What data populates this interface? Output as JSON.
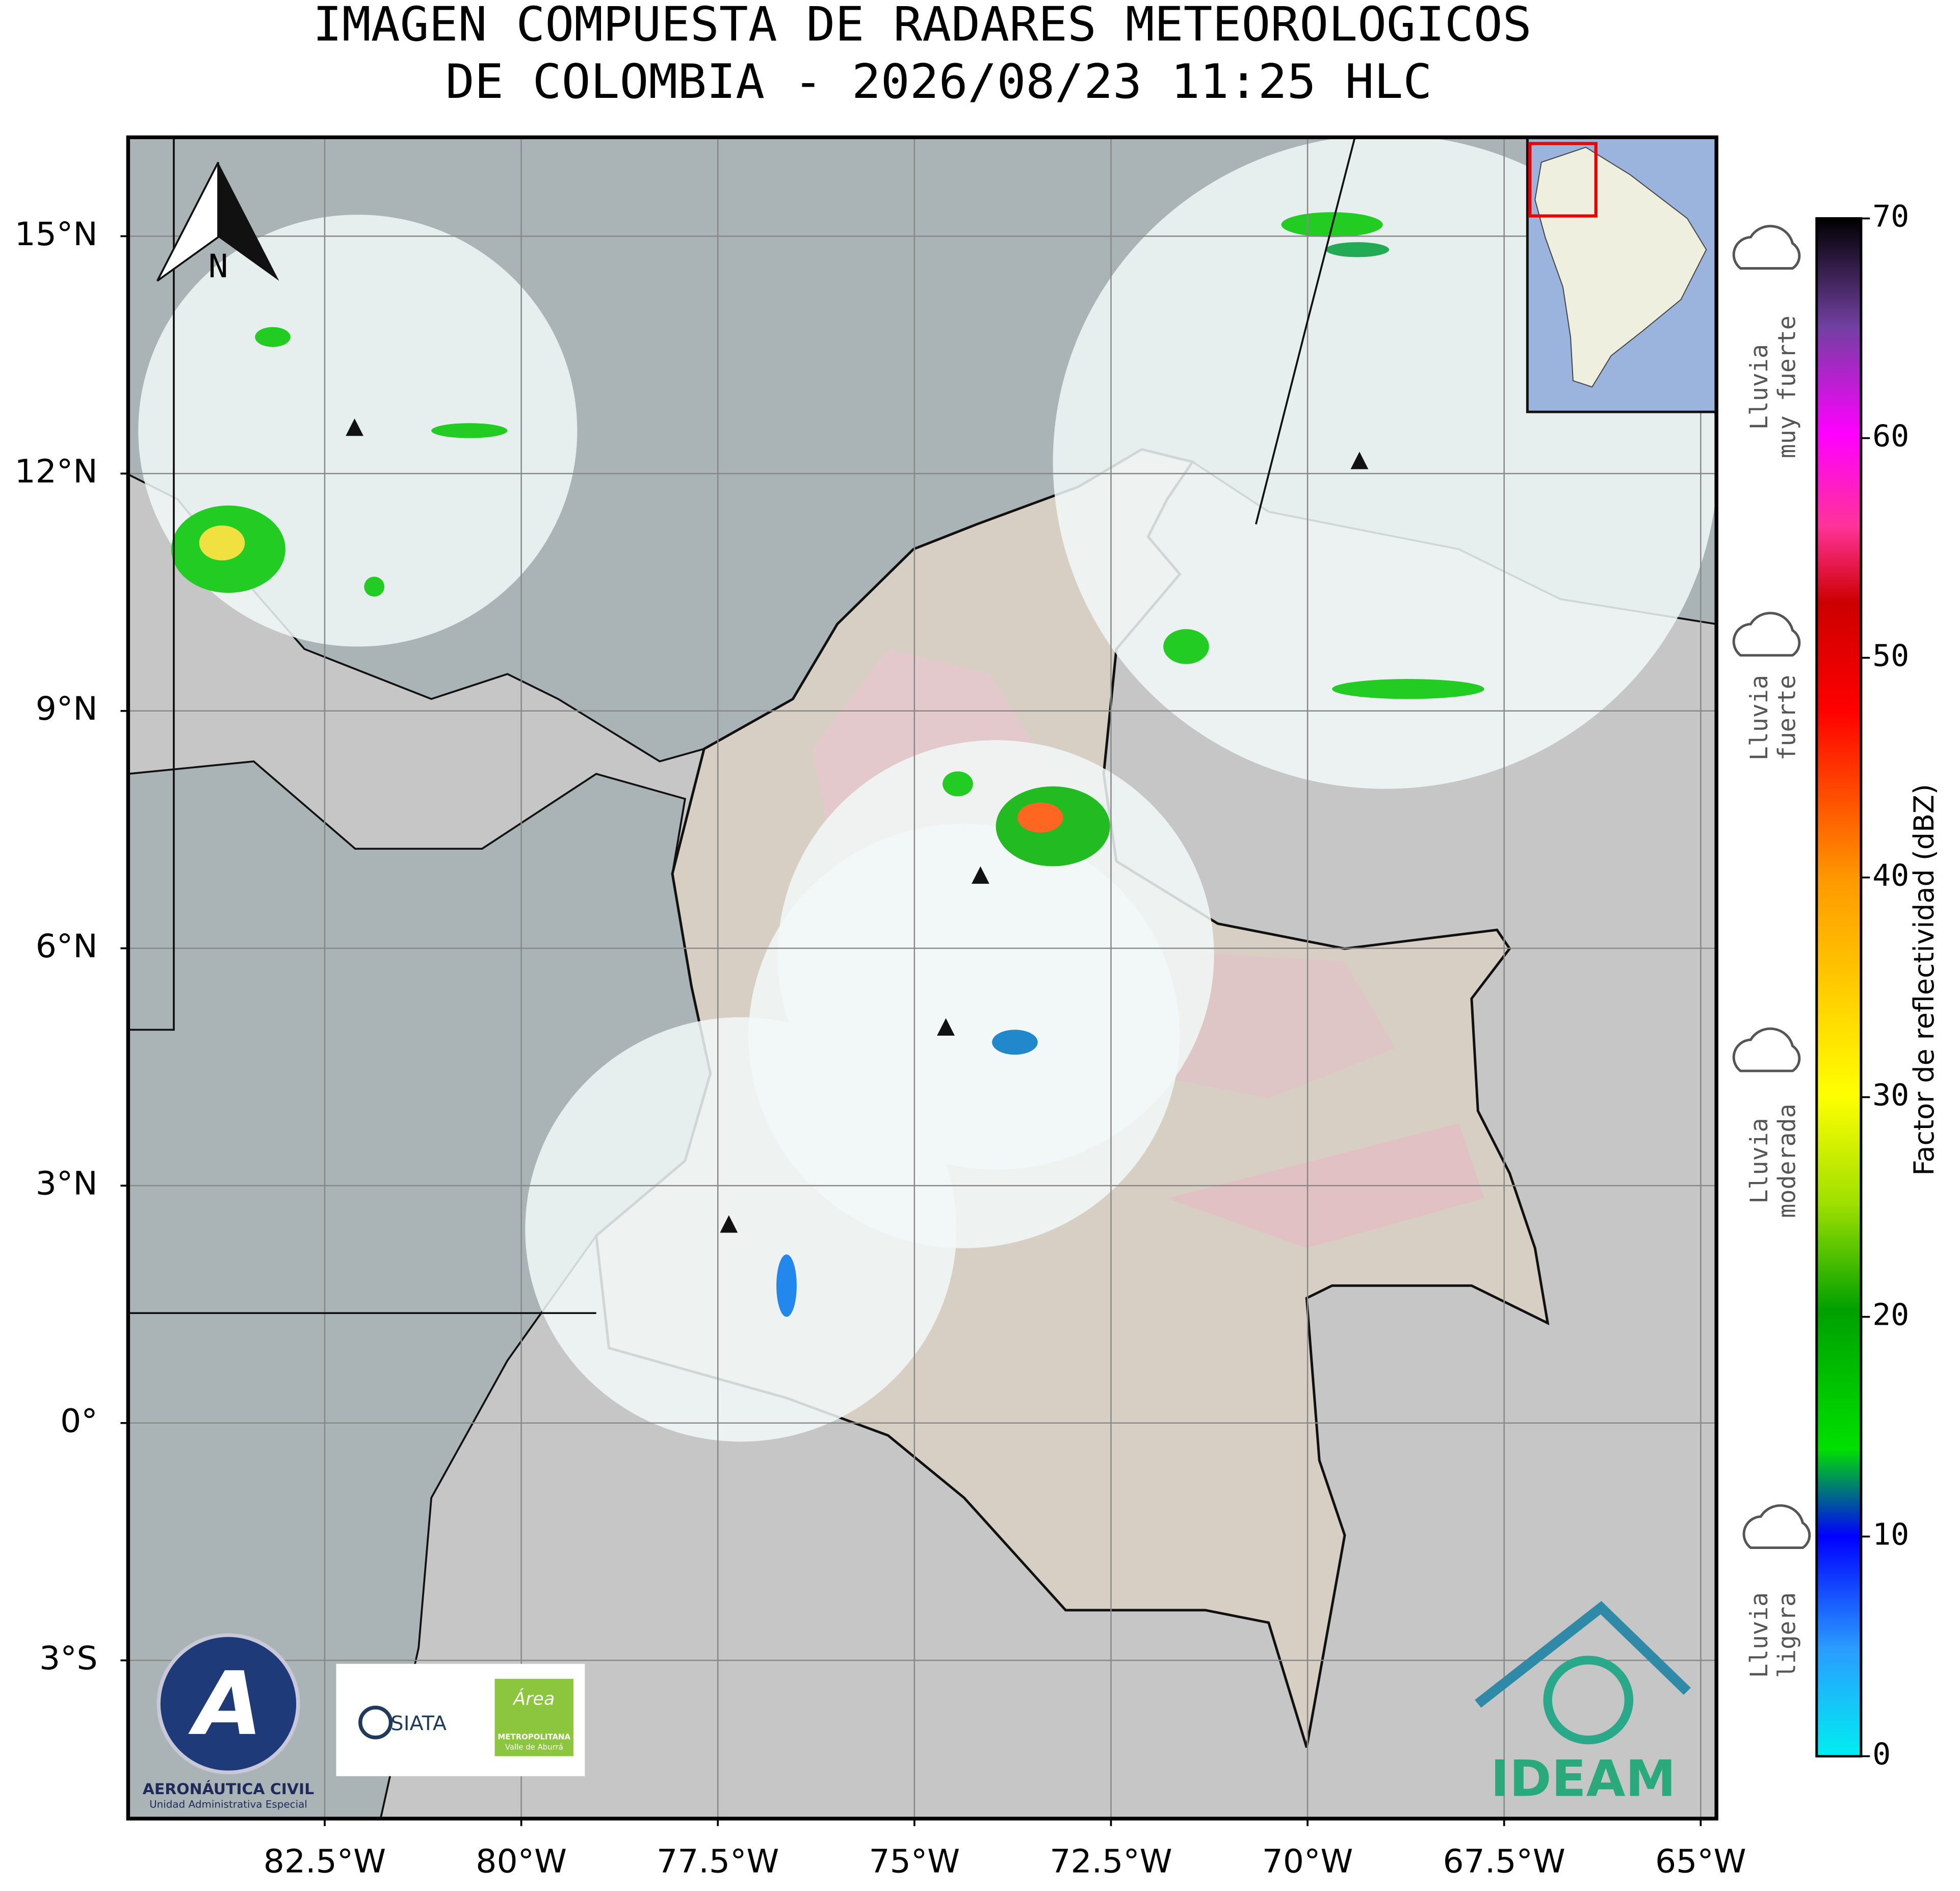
{
  "title": [
    "IMAGEN COMPUESTA DE RADARES METEOROLOGICOS",
    "DE COLOMBIA - 2026/08/23 11:25 HLC"
  ],
  "map": {
    "xlim": [
      -85,
      -64.8
    ],
    "ylim": [
      -5,
      16.25
    ],
    "grid": true,
    "xticks": [
      {
        "value": -82.5,
        "label": "82.5°W"
      },
      {
        "value": -80,
        "label": "80°W"
      },
      {
        "value": -77.5,
        "label": "77.5°W"
      },
      {
        "value": -75,
        "label": "75°W"
      },
      {
        "value": -72.5,
        "label": "72.5°W"
      },
      {
        "value": -70,
        "label": "70°W"
      },
      {
        "value": -67.5,
        "label": "67.5°W"
      },
      {
        "value": -65,
        "label": "65°W"
      }
    ],
    "yticks": [
      {
        "value": 15,
        "label": "15°N"
      },
      {
        "value": 12,
        "label": "12°N"
      },
      {
        "value": 9,
        "label": "9°N"
      },
      {
        "value": 6,
        "label": "6°N"
      },
      {
        "value": 3,
        "label": "3°N"
      },
      {
        "value": 0,
        "label": "0°"
      },
      {
        "value": -3,
        "label": "3°S"
      }
    ],
    "radars": [
      {
        "lon": -82.12,
        "lat": 12.57
      },
      {
        "lon": -69.34,
        "lat": 12.15
      },
      {
        "lon": -74.16,
        "lat": 6.91
      },
      {
        "lon": -74.6,
        "lat": 4.99
      },
      {
        "lon": -77.36,
        "lat": 2.5
      }
    ]
  },
  "north_label": "N",
  "colorbar": {
    "label": "Factor de reflectividad (dBZ)",
    "lim": [
      0,
      70
    ],
    "ticks": [
      0,
      10,
      20,
      30,
      40,
      50,
      60,
      70
    ]
  },
  "intensity_labels": [
    [
      "Lluvia",
      "muy fuerte"
    ],
    [
      "Lluvia",
      "fuerte"
    ],
    [
      "Lluvia",
      "moderada"
    ],
    [
      "Lluvia",
      "ligera"
    ]
  ],
  "logos": {
    "aerocivil": [
      "AERONÁUTICA CIVIL",
      "Unidad Administrativa Especial"
    ],
    "siata": "SIATA",
    "area": [
      "Área",
      "METROPOLITANA",
      "Valle de Aburrá"
    ],
    "ideam": "IDEAM"
  }
}
